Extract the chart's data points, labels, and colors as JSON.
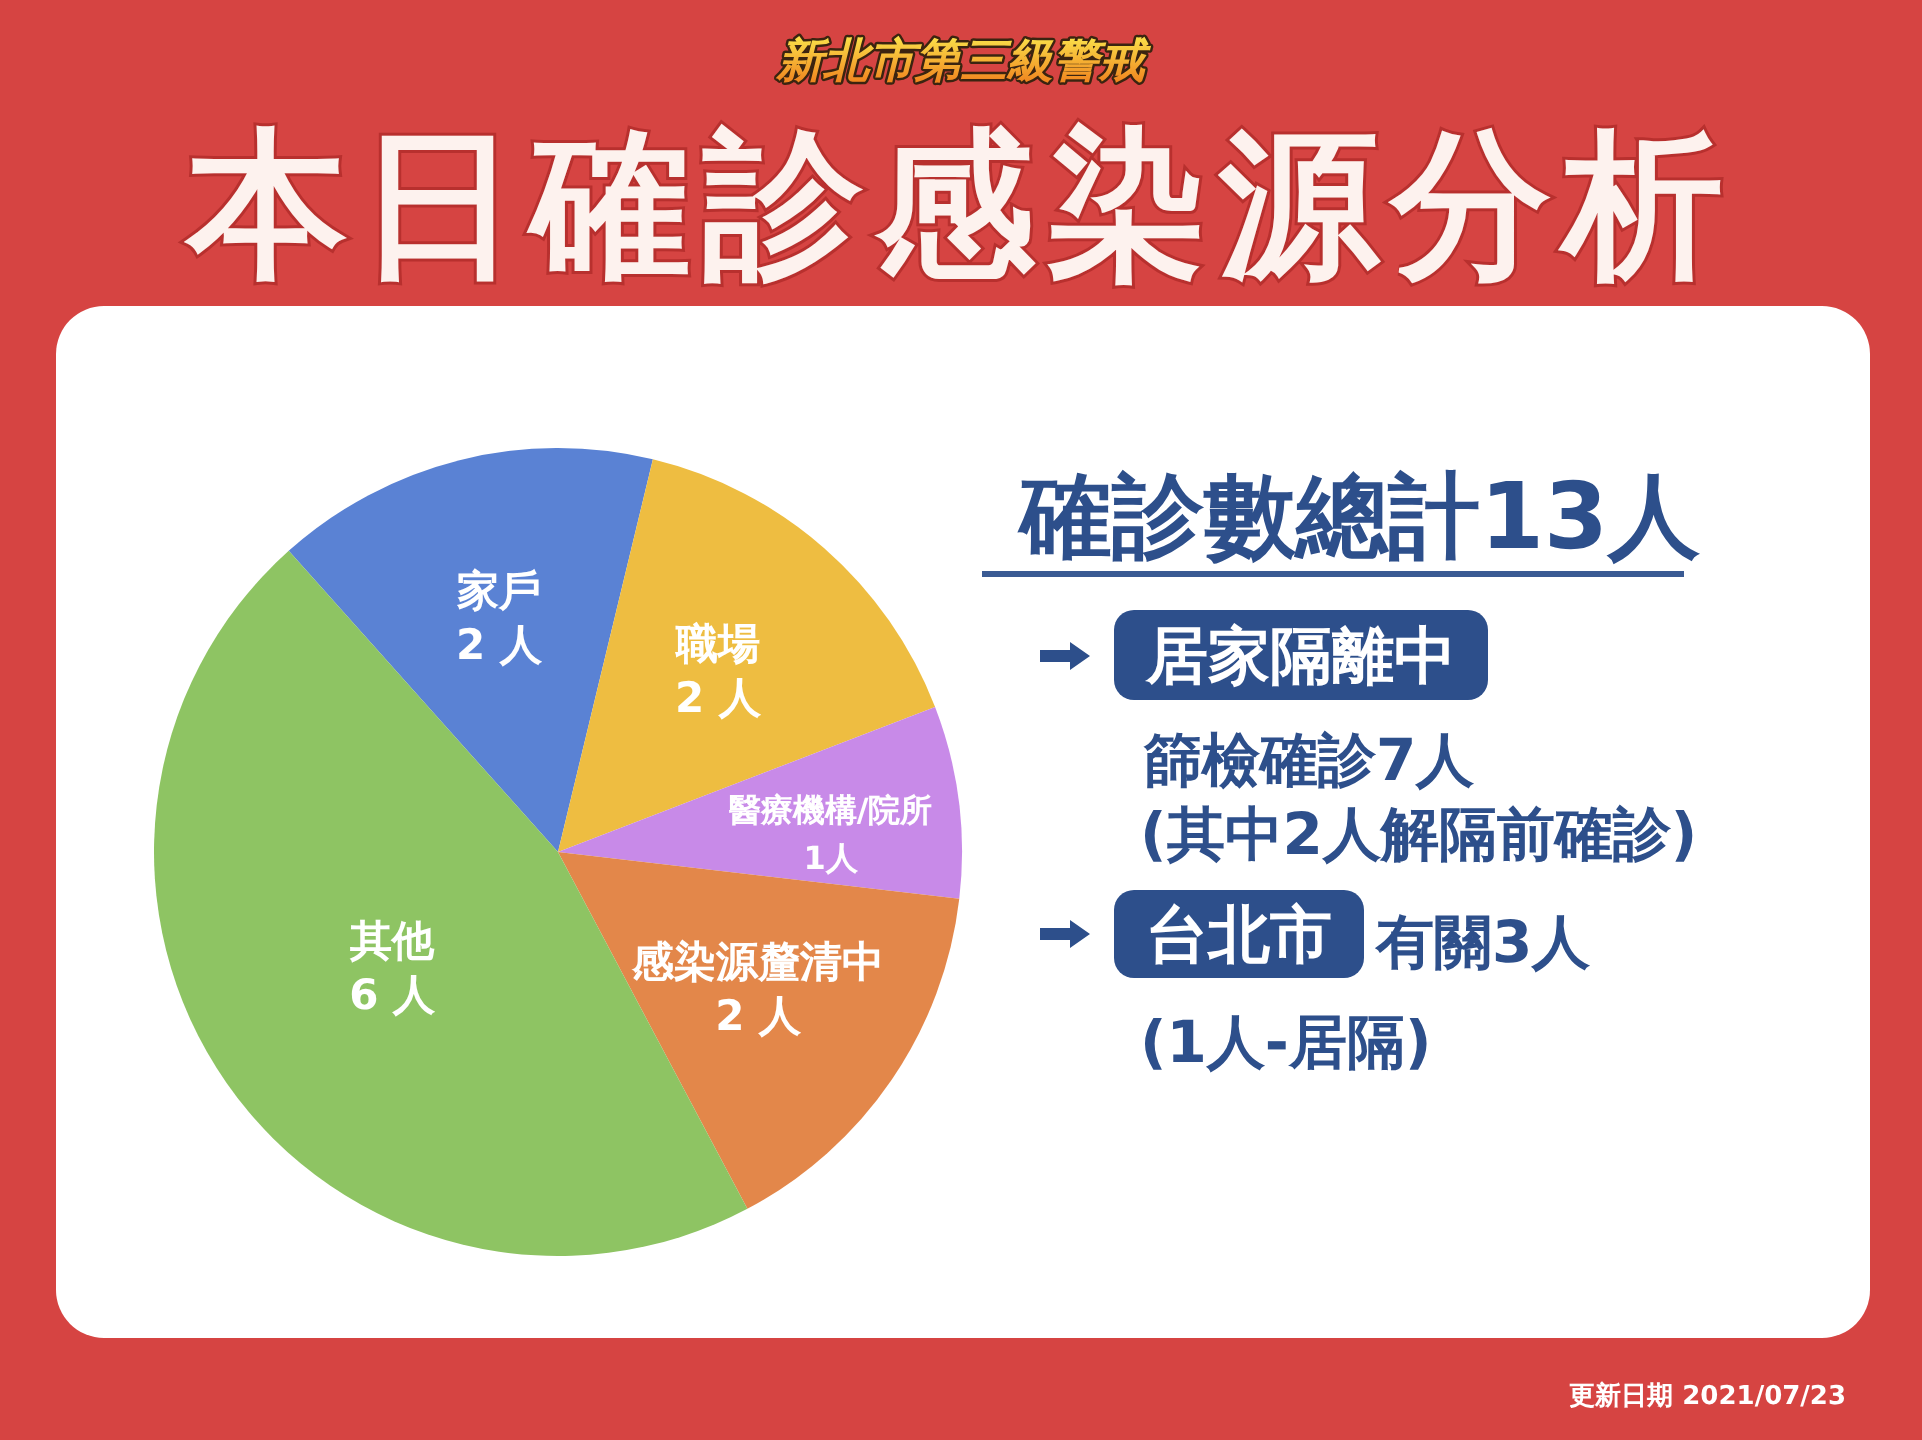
{
  "chart_data": {
    "type": "pie",
    "title": "本日確診感染源分析",
    "subtitle": "新北市第三級警戒",
    "categories": [
      "家戶",
      "職場",
      "醫療機構/院所",
      "感染源釐清中",
      "其他"
    ],
    "values": [
      2,
      2,
      1,
      2,
      6
    ],
    "colors": [
      "#5a82d4",
      "#eebd41",
      "#c88ae8",
      "#e3874a",
      "#8ec463"
    ],
    "value_labels": [
      "2 人",
      "2 人",
      "1人",
      "2 人",
      "6 人"
    ],
    "annotations": [
      "確診數總計13人",
      "居家隔離中",
      "篩檢確診7人",
      "(其中2人解隔前確診)",
      "台北市",
      "有關3人",
      "(1人-居隔)",
      "更新日期 2021/07/23"
    ]
  }
}
